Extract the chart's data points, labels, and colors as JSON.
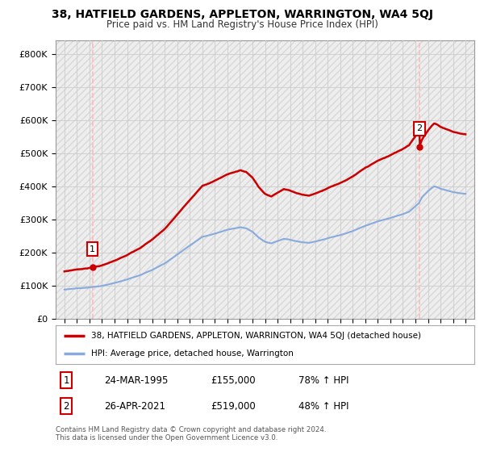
{
  "title": "38, HATFIELD GARDENS, APPLETON, WARRINGTON, WA4 5QJ",
  "subtitle": "Price paid vs. HM Land Registry's House Price Index (HPI)",
  "ylim": [
    0,
    840000
  ],
  "yticks": [
    0,
    100000,
    200000,
    300000,
    400000,
    500000,
    600000,
    700000,
    800000
  ],
  "ytick_labels": [
    "£0",
    "£100K",
    "£200K",
    "£300K",
    "£400K",
    "£500K",
    "£600K",
    "£700K",
    "£800K"
  ],
  "sale1_date": 1995.23,
  "sale1_price": 155000,
  "sale2_date": 2021.32,
  "sale2_price": 519000,
  "line_color_property": "#cc0000",
  "line_color_hpi": "#88aadd",
  "marker_color": "#cc0000",
  "grid_color": "#cccccc",
  "legend_label_property": "38, HATFIELD GARDENS, APPLETON, WARRINGTON, WA4 5QJ (detached house)",
  "legend_label_hpi": "HPI: Average price, detached house, Warrington",
  "table_row1": [
    "1",
    "24-MAR-1995",
    "£155,000",
    "78% ↑ HPI"
  ],
  "table_row2": [
    "2",
    "26-APR-2021",
    "£519,000",
    "48% ↑ HPI"
  ],
  "footnote": "Contains HM Land Registry data © Crown copyright and database right 2024.\nThis data is licensed under the Open Government Licence v3.0.",
  "vline_color": "#ffbbbb",
  "hpi_keypoints": [
    [
      1993.0,
      88000
    ],
    [
      1994.0,
      92000
    ],
    [
      1995.0,
      95000
    ],
    [
      1996.0,
      100000
    ],
    [
      1997.0,
      108000
    ],
    [
      1998.0,
      118000
    ],
    [
      1999.0,
      132000
    ],
    [
      2000.0,
      148000
    ],
    [
      2001.0,
      168000
    ],
    [
      2002.0,
      195000
    ],
    [
      2003.0,
      222000
    ],
    [
      2004.0,
      248000
    ],
    [
      2005.0,
      258000
    ],
    [
      2006.0,
      270000
    ],
    [
      2007.0,
      278000
    ],
    [
      2007.5,
      275000
    ],
    [
      2008.0,
      265000
    ],
    [
      2008.5,
      248000
    ],
    [
      2009.0,
      235000
    ],
    [
      2009.5,
      230000
    ],
    [
      2010.0,
      238000
    ],
    [
      2010.5,
      245000
    ],
    [
      2011.0,
      242000
    ],
    [
      2011.5,
      238000
    ],
    [
      2012.0,
      235000
    ],
    [
      2012.5,
      233000
    ],
    [
      2013.0,
      237000
    ],
    [
      2013.5,
      242000
    ],
    [
      2014.0,
      248000
    ],
    [
      2015.0,
      258000
    ],
    [
      2016.0,
      270000
    ],
    [
      2017.0,
      285000
    ],
    [
      2018.0,
      298000
    ],
    [
      2019.0,
      308000
    ],
    [
      2020.0,
      320000
    ],
    [
      2020.5,
      328000
    ],
    [
      2021.0,
      345000
    ],
    [
      2021.3,
      355000
    ],
    [
      2021.5,
      370000
    ],
    [
      2022.0,
      390000
    ],
    [
      2022.3,
      400000
    ],
    [
      2022.5,
      405000
    ],
    [
      2022.8,
      402000
    ],
    [
      2023.0,
      398000
    ],
    [
      2023.5,
      393000
    ],
    [
      2024.0,
      388000
    ],
    [
      2024.5,
      385000
    ],
    [
      2025.0,
      383000
    ]
  ]
}
